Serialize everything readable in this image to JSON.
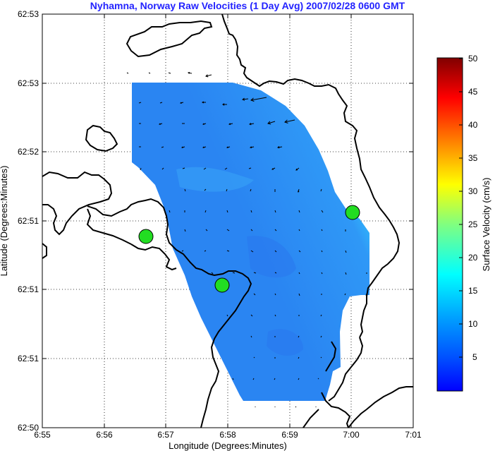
{
  "title": "Nyhamna, Norway Raw Velocities (1 Day Avg) 2007/02/28 0600 GMT",
  "xaxis": {
    "label": "Longitude (Degrees:Minutes)",
    "ticks": [
      "6:55",
      "6:56",
      "6:57",
      "6:58",
      "6:59",
      "7:00",
      "7:01"
    ]
  },
  "yaxis": {
    "label": "Latitude (Degrees:Minutes)",
    "ticks": [
      "62:53",
      "62:53",
      "62:52",
      "62:51",
      "62:51",
      "62:51",
      "62:50"
    ]
  },
  "colorbar": {
    "label": "Surface Velocity (cm/s)",
    "ticks": [
      "50",
      "45",
      "40",
      "35",
      "30",
      "25",
      "20",
      "15",
      "10",
      "5"
    ],
    "colors": [
      "#7f0000",
      "#ff0000",
      "#ff8000",
      "#ffff00",
      "#80ff80",
      "#00ffff",
      "#0080ff",
      "#0000ff"
    ]
  },
  "stations": [
    "station-1",
    "station-2",
    "station-3"
  ],
  "colors": {
    "title": "#2323ff",
    "field_main": "#2a7ff5",
    "field_light": "#3399ff",
    "field_cyan": "#33ccff",
    "field_green": "#66e0a0",
    "station_fill": "#22dd22",
    "coastline": "#000000"
  }
}
